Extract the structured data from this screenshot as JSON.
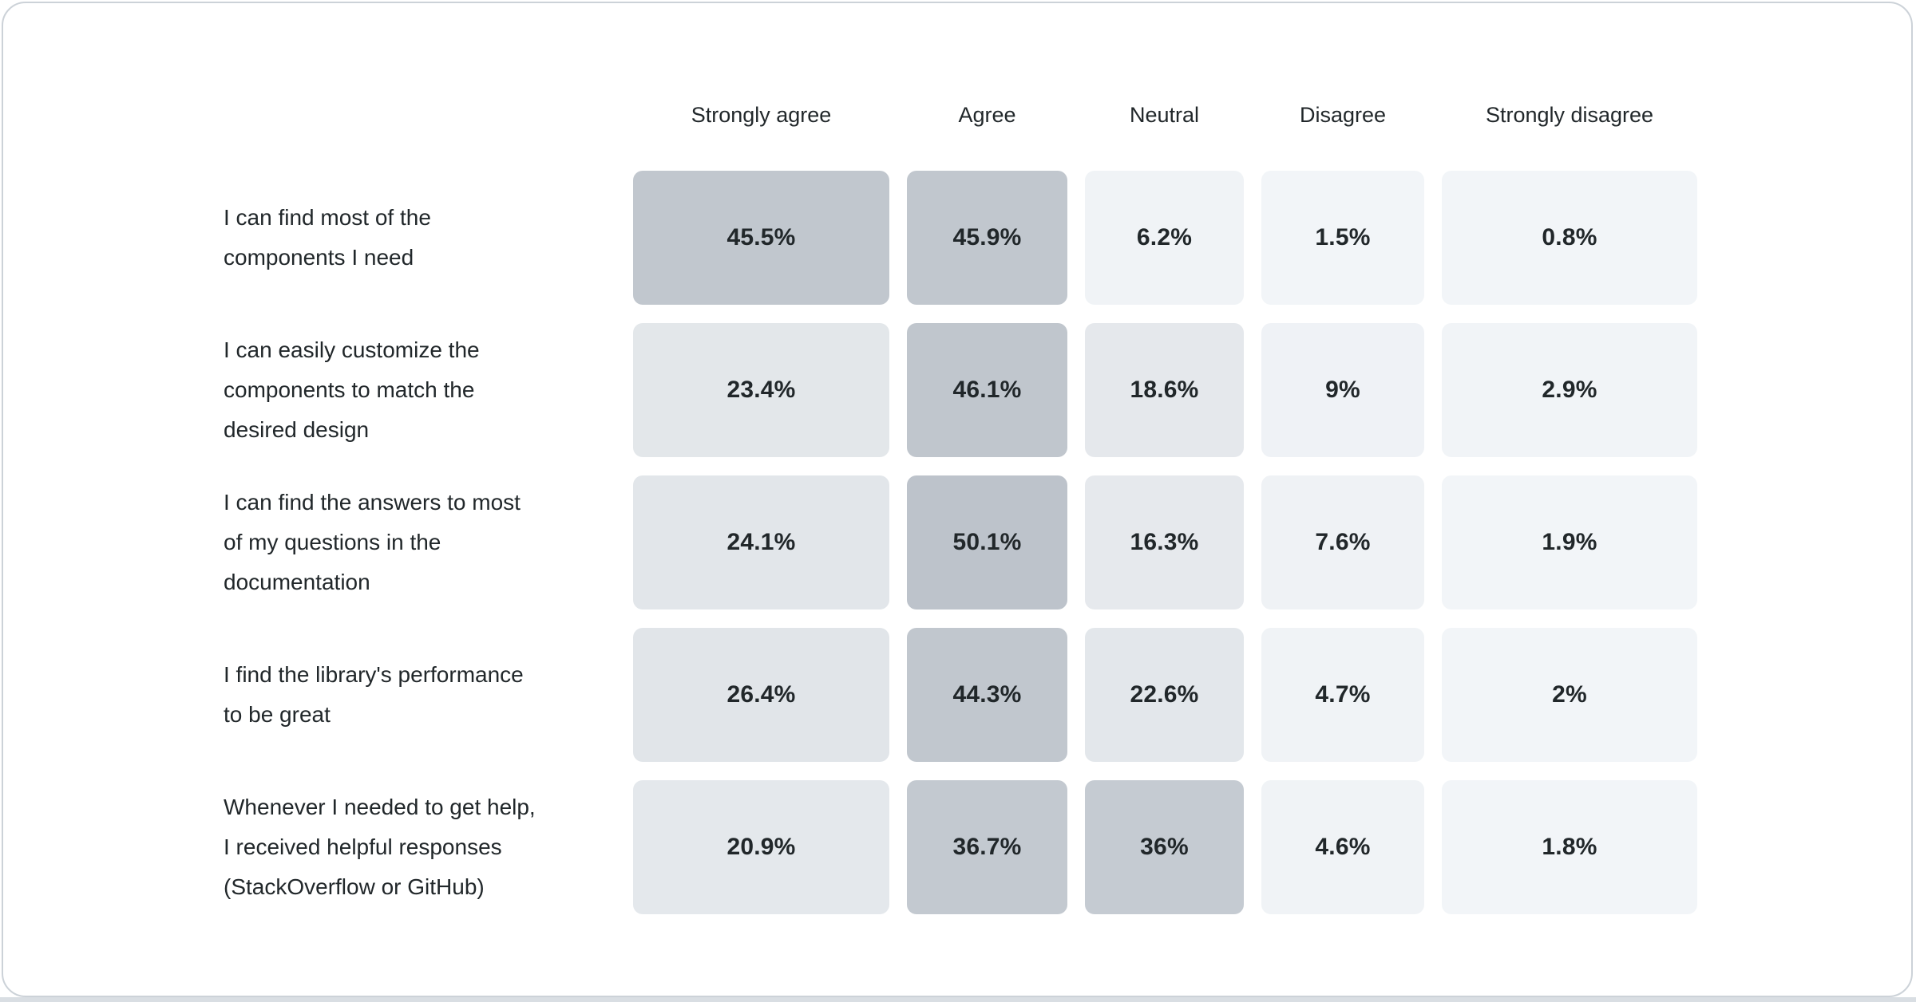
{
  "chart_data": {
    "type": "heatmap",
    "title": "",
    "xlabel": "",
    "ylabel": "",
    "legend": "none",
    "grid": "off",
    "columns": [
      "Strongly agree",
      "Agree",
      "Neutral",
      "Disagree",
      "Strongly disagree"
    ],
    "color_scale": {
      "low": "#f2f5f8",
      "high": "#bdc3cb",
      "value_domain": [
        0,
        50.1
      ]
    },
    "rows": [
      {
        "label": "I can find most of the\ncomponents I need",
        "values": [
          45.5,
          45.9,
          6.2,
          1.5,
          0.8
        ],
        "display_values": [
          "45.5%",
          "45.9%",
          "6.2%",
          "1.5%",
          "0.8%"
        ],
        "colors": [
          "#c1c7ce",
          "#c1c7ce",
          "#f0f3f6",
          "#f2f5f8",
          "#f2f5f8"
        ]
      },
      {
        "label": "I can easily customize the\ncomponents to match the\ndesired design",
        "values": [
          23.4,
          46.1,
          18.6,
          9,
          2.9
        ],
        "display_values": [
          "23.4%",
          "46.1%",
          "18.6%",
          "9%",
          "2.9%"
        ],
        "colors": [
          "#e3e7ea",
          "#c0c6cd",
          "#e5e8ec",
          "#eff2f6",
          "#f1f4f7"
        ]
      },
      {
        "label": "I can find the answers to most\nof my questions in the\ndocumentation",
        "values": [
          24.1,
          50.1,
          16.3,
          7.6,
          1.9
        ],
        "display_values": [
          "24.1%",
          "50.1%",
          "16.3%",
          "7.6%",
          "1.9%"
        ],
        "colors": [
          "#e2e6ea",
          "#bdc3cb",
          "#e6e9ed",
          "#eff2f5",
          "#f2f5f8"
        ]
      },
      {
        "label": "I find the library's performance\nto be great",
        "values": [
          26.4,
          44.3,
          22.6,
          4.7,
          2
        ],
        "display_values": [
          "26.4%",
          "44.3%",
          "22.6%",
          "4.7%",
          "2%"
        ],
        "colors": [
          "#e1e5e9",
          "#c1c7ce",
          "#e3e7eb",
          "#f0f3f6",
          "#f2f5f8"
        ]
      },
      {
        "label": "Whenever I needed to get help,\nI received helpful responses\n(StackOverflow or GitHub)",
        "values": [
          20.9,
          36.7,
          36,
          4.6,
          1.8
        ],
        "display_values": [
          "20.9%",
          "36.7%",
          "36%",
          "4.6%",
          "1.8%"
        ],
        "colors": [
          "#e4e8ec",
          "#c3c9d0",
          "#c5cbd2",
          "#f0f3f6",
          "#f2f5f8"
        ]
      }
    ]
  },
  "theme": {
    "text_color": "#21272a",
    "card_background": "#ffffff",
    "card_border": "#ccd2d8",
    "bottom_strip": "#d9dee3"
  }
}
